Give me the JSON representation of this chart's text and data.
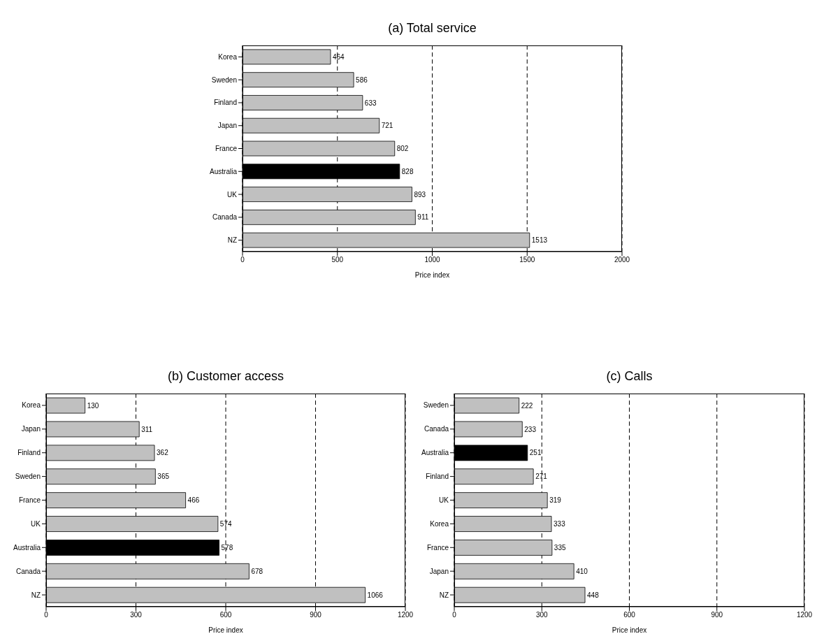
{
  "chart_data": [
    {
      "type": "bar",
      "orientation": "horizontal",
      "title": "(a) Total service",
      "xlabel": "Price index",
      "categories": [
        "Korea",
        "Sweden",
        "Finland",
        "Japan",
        "France",
        "Australia",
        "UK",
        "Canada",
        "NZ"
      ],
      "values": [
        464,
        586,
        633,
        721,
        802,
        828,
        893,
        911,
        1513
      ],
      "colors": [
        "#c0c0c0",
        "#c0c0c0",
        "#c0c0c0",
        "#c0c0c0",
        "#c0c0c0",
        "#000000",
        "#c0c0c0",
        "#c0c0c0",
        "#c0c0c0"
      ],
      "xlim": [
        0,
        2000
      ],
      "xticks": [
        0,
        500,
        1000,
        1500,
        2000
      ],
      "grid": "x",
      "data_labels": true
    },
    {
      "type": "bar",
      "orientation": "horizontal",
      "title": "(b) Customer access",
      "xlabel": "Price index",
      "categories": [
        "Korea",
        "Japan",
        "Finland",
        "Sweden",
        "France",
        "UK",
        "Australia",
        "Canada",
        "NZ"
      ],
      "values": [
        130,
        311,
        362,
        365,
        466,
        574,
        578,
        678,
        1066
      ],
      "colors": [
        "#c0c0c0",
        "#c0c0c0",
        "#c0c0c0",
        "#c0c0c0",
        "#c0c0c0",
        "#c0c0c0",
        "#000000",
        "#c0c0c0",
        "#c0c0c0"
      ],
      "xlim": [
        0,
        1200
      ],
      "xticks": [
        0,
        300,
        600,
        900,
        1200
      ],
      "grid": "x",
      "data_labels": true
    },
    {
      "type": "bar",
      "orientation": "horizontal",
      "title": "(c) Calls",
      "xlabel": "Price index",
      "categories": [
        "Sweden",
        "Canada",
        "Australia",
        "Finland",
        "UK",
        "Korea",
        "France",
        "Japan",
        "NZ"
      ],
      "values": [
        222,
        233,
        251,
        271,
        319,
        333,
        335,
        410,
        448
      ],
      "colors": [
        "#c0c0c0",
        "#c0c0c0",
        "#000000",
        "#c0c0c0",
        "#c0c0c0",
        "#c0c0c0",
        "#c0c0c0",
        "#c0c0c0",
        "#c0c0c0"
      ],
      "xlim": [
        0,
        1200
      ],
      "xticks": [
        0,
        300,
        600,
        900,
        1200
      ],
      "grid": "x",
      "data_labels": true
    }
  ]
}
